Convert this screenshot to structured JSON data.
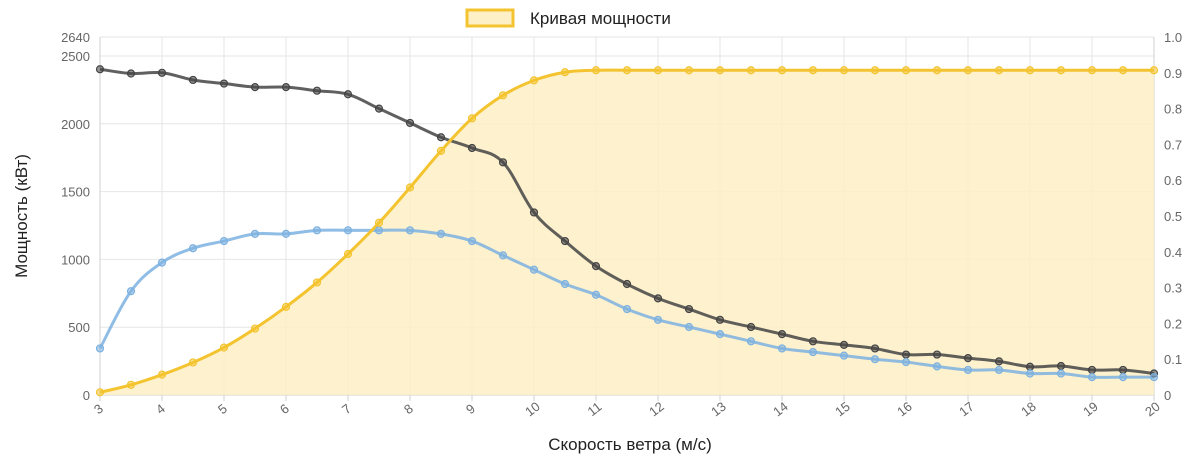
{
  "chart_data": {
    "type": "line",
    "legend": {
      "label": "Кривая мощности",
      "position": "top",
      "color": "#f4c430",
      "fill": "#fdefc6"
    },
    "xlabel": "Скорость ветра (м/с)",
    "ylabel": "Мощность (кВт)",
    "x": [
      3,
      3.5,
      4,
      4.5,
      5,
      5.5,
      6,
      6.5,
      7,
      7.5,
      8,
      8.5,
      9,
      9.5,
      10,
      10.5,
      11,
      11.5,
      12,
      12.5,
      13,
      13.5,
      14,
      14.5,
      15,
      15.5,
      16,
      16.5,
      17,
      17.5,
      18,
      18.5,
      19,
      19.5,
      20
    ],
    "xlim": [
      3,
      20
    ],
    "xticks": [
      "3",
      "4",
      "5",
      "6",
      "7",
      "8",
      "9",
      "10",
      "11",
      "12",
      "13",
      "14",
      "15",
      "16",
      "17",
      "18",
      "19",
      "20"
    ],
    "ylim": [
      0,
      2640
    ],
    "yticks": [
      "0",
      "500",
      "1000",
      "1500",
      "2000",
      "2500",
      "2640"
    ],
    "y2lim": [
      0,
      1.0
    ],
    "y2ticks": [
      "0",
      "0.1",
      "0.2",
      "0.3",
      "0.4",
      "0.5",
      "0.6",
      "0.7",
      "0.8",
      "0.9",
      "1.0"
    ],
    "series": [
      {
        "color": "#f4c430",
        "axis": "left",
        "filled": true,
        "values": [
          20,
          75,
          150,
          240,
          350,
          490,
          650,
          830,
          1040,
          1270,
          1530,
          1800,
          2040,
          2210,
          2320,
          2380,
          2395,
          2395,
          2395,
          2395,
          2395,
          2395,
          2395,
          2395,
          2395,
          2395,
          2395,
          2395,
          2395,
          2395,
          2395,
          2395,
          2395,
          2395,
          2395
        ]
      },
      {
        "color": "#444444",
        "axis": "right",
        "values": [
          0.91,
          0.898,
          0.9,
          0.88,
          0.87,
          0.86,
          0.86,
          0.85,
          0.84,
          0.8,
          0.76,
          0.72,
          0.69,
          0.65,
          0.51,
          0.43,
          0.36,
          0.31,
          0.27,
          0.24,
          0.21,
          0.19,
          0.17,
          0.15,
          0.14,
          0.13,
          0.113,
          0.113,
          0.103,
          0.094,
          0.079,
          0.081,
          0.07,
          0.07,
          0.06
        ]
      },
      {
        "color": "#7cb1e0",
        "axis": "right",
        "values": [
          0.13,
          0.29,
          0.37,
          0.41,
          0.43,
          0.45,
          0.45,
          0.46,
          0.46,
          0.46,
          0.46,
          0.45,
          0.43,
          0.39,
          0.35,
          0.31,
          0.28,
          0.24,
          0.21,
          0.19,
          0.17,
          0.15,
          0.13,
          0.12,
          0.11,
          0.1,
          0.092,
          0.08,
          0.07,
          0.07,
          0.06,
          0.06,
          0.05,
          0.05,
          0.05
        ]
      }
    ]
  }
}
